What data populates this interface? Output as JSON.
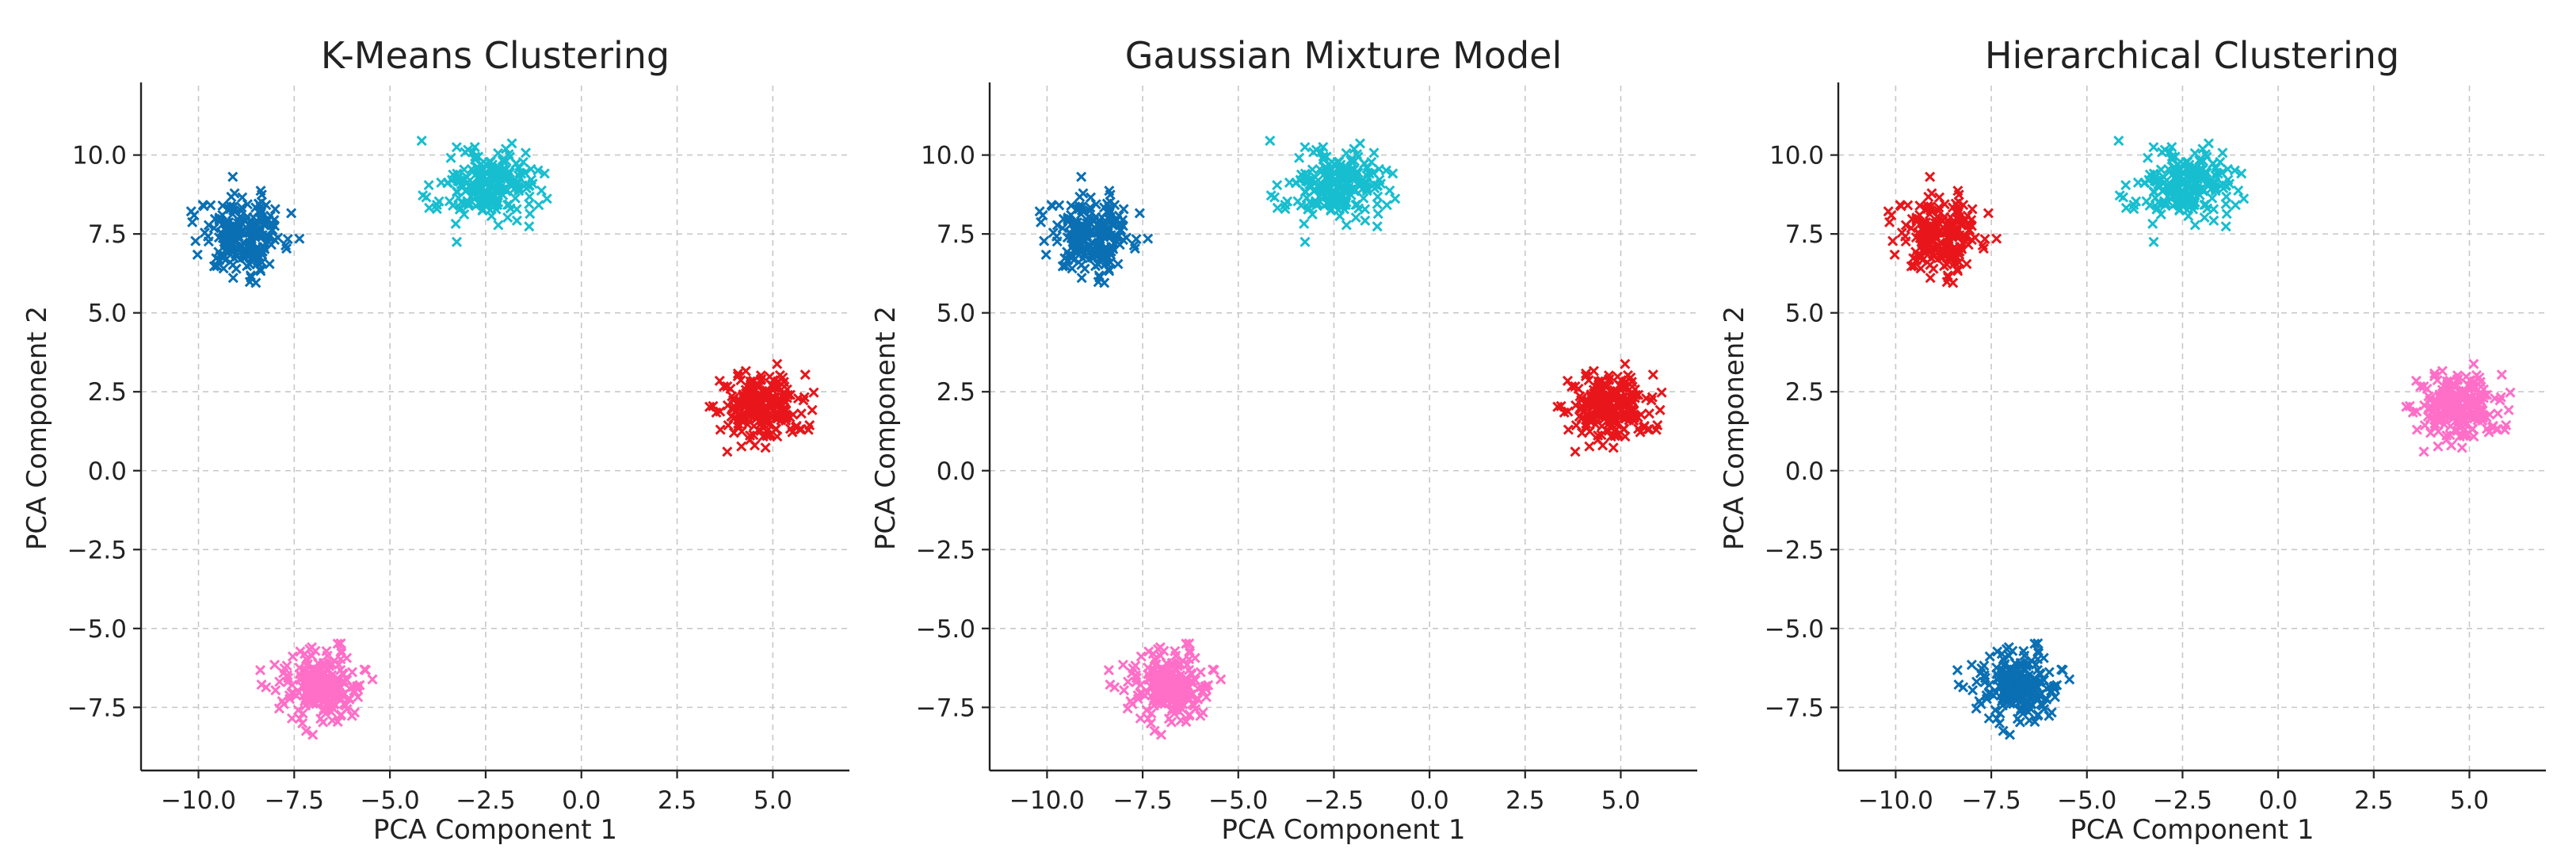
{
  "chart_data": [
    {
      "type": "scatter",
      "title": "K-Means Clustering",
      "xlabel": "PCA Component 1",
      "ylabel": "PCA Component 2",
      "xlim": [
        -11.5,
        7
      ],
      "ylim": [
        -9.5,
        12.2
      ],
      "xticks": [
        -10.0,
        -7.5,
        -5.0,
        -2.5,
        0.0,
        2.5,
        5.0
      ],
      "yticks": [
        -7.5,
        -5.0,
        -2.5,
        0.0,
        2.5,
        5.0,
        7.5,
        10.0
      ],
      "xtick_labels": [
        "−10.0",
        "−7.5",
        "−5.0",
        "−2.5",
        "0.0",
        "2.5",
        "5.0"
      ],
      "ytick_labels": [
        "−7.5",
        "−5.0",
        "−2.5",
        "0.0",
        "2.5",
        "5.0",
        "7.5",
        "10.0"
      ],
      "grid": true,
      "marker": "x",
      "clusters": [
        {
          "center": [
            -8.8,
            7.5
          ],
          "spread": [
            0.55,
            0.6
          ],
          "color": "#0a6fb3"
        },
        {
          "center": [
            -2.5,
            9.0
          ],
          "spread": [
            0.6,
            0.55
          ],
          "color": "#17becf"
        },
        {
          "center": [
            4.7,
            2.0
          ],
          "spread": [
            0.55,
            0.55
          ],
          "color": "#e8161b"
        },
        {
          "center": [
            -6.8,
            -6.8
          ],
          "spread": [
            0.55,
            0.55
          ],
          "color": "#ff6ec7"
        }
      ]
    },
    {
      "type": "scatter",
      "title": "Gaussian Mixture Model",
      "xlabel": "PCA Component 1",
      "ylabel": "PCA Component 2",
      "xlim": [
        -11.5,
        7
      ],
      "ylim": [
        -9.5,
        12.2
      ],
      "xticks": [
        -10.0,
        -7.5,
        -5.0,
        -2.5,
        0.0,
        2.5,
        5.0
      ],
      "yticks": [
        -7.5,
        -5.0,
        -2.5,
        0.0,
        2.5,
        5.0,
        7.5,
        10.0
      ],
      "xtick_labels": [
        "−10.0",
        "−7.5",
        "−5.0",
        "−2.5",
        "0.0",
        "2.5",
        "5.0"
      ],
      "ytick_labels": [
        "−7.5",
        "−5.0",
        "−2.5",
        "0.0",
        "2.5",
        "5.0",
        "7.5",
        "10.0"
      ],
      "grid": true,
      "marker": "x",
      "clusters": [
        {
          "center": [
            -8.8,
            7.5
          ],
          "spread": [
            0.55,
            0.6
          ],
          "color": "#0a6fb3"
        },
        {
          "center": [
            -2.5,
            9.0
          ],
          "spread": [
            0.6,
            0.55
          ],
          "color": "#17becf"
        },
        {
          "center": [
            4.7,
            2.0
          ],
          "spread": [
            0.55,
            0.55
          ],
          "color": "#e8161b"
        },
        {
          "center": [
            -6.8,
            -6.8
          ],
          "spread": [
            0.55,
            0.55
          ],
          "color": "#ff6ec7"
        }
      ]
    },
    {
      "type": "scatter",
      "title": "Hierarchical Clustering",
      "xlabel": "PCA Component 1",
      "ylabel": "PCA Component 2",
      "xlim": [
        -11.5,
        7
      ],
      "ylim": [
        -9.5,
        12.2
      ],
      "xticks": [
        -10.0,
        -7.5,
        -5.0,
        -2.5,
        0.0,
        2.5,
        5.0
      ],
      "yticks": [
        -7.5,
        -5.0,
        -2.5,
        0.0,
        2.5,
        5.0,
        7.5,
        10.0
      ],
      "xtick_labels": [
        "−10.0",
        "−7.5",
        "−5.0",
        "−2.5",
        "0.0",
        "2.5",
        "5.0"
      ],
      "ytick_labels": [
        "−7.5",
        "−5.0",
        "−2.5",
        "0.0",
        "2.5",
        "5.0",
        "7.5",
        "10.0"
      ],
      "grid": true,
      "marker": "x",
      "clusters": [
        {
          "center": [
            -8.8,
            7.5
          ],
          "spread": [
            0.55,
            0.6
          ],
          "color": "#e8161b"
        },
        {
          "center": [
            -2.5,
            9.0
          ],
          "spread": [
            0.6,
            0.55
          ],
          "color": "#17becf"
        },
        {
          "center": [
            4.7,
            2.0
          ],
          "spread": [
            0.55,
            0.55
          ],
          "color": "#ff6ec7"
        },
        {
          "center": [
            -6.8,
            -6.8
          ],
          "spread": [
            0.55,
            0.55
          ],
          "color": "#0a6fb3"
        }
      ]
    }
  ]
}
